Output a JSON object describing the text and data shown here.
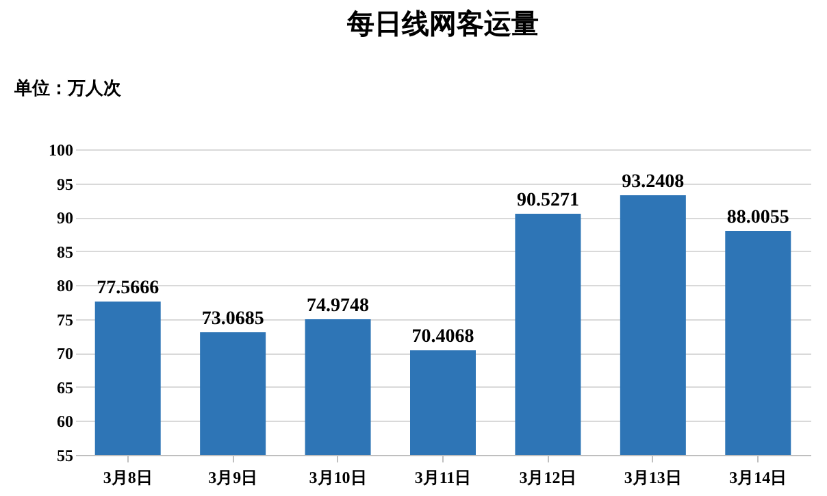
{
  "chart_data": {
    "type": "bar",
    "title": "每日线网客运量",
    "ylabel": "单位：万人次",
    "categories": [
      "3月8日",
      "3月9日",
      "3月10日",
      "3月11日",
      "3月12日",
      "3月13日",
      "3月14日"
    ],
    "values": [
      77.5666,
      73.0685,
      74.9748,
      70.4068,
      90.5271,
      93.2408,
      88.0055
    ],
    "color": "#2e75b6",
    "ylim": [
      55,
      100
    ],
    "yticks": [
      55,
      60,
      65,
      70,
      75,
      80,
      85,
      90,
      95,
      100
    ],
    "grid": "y",
    "data_labels": true
  }
}
